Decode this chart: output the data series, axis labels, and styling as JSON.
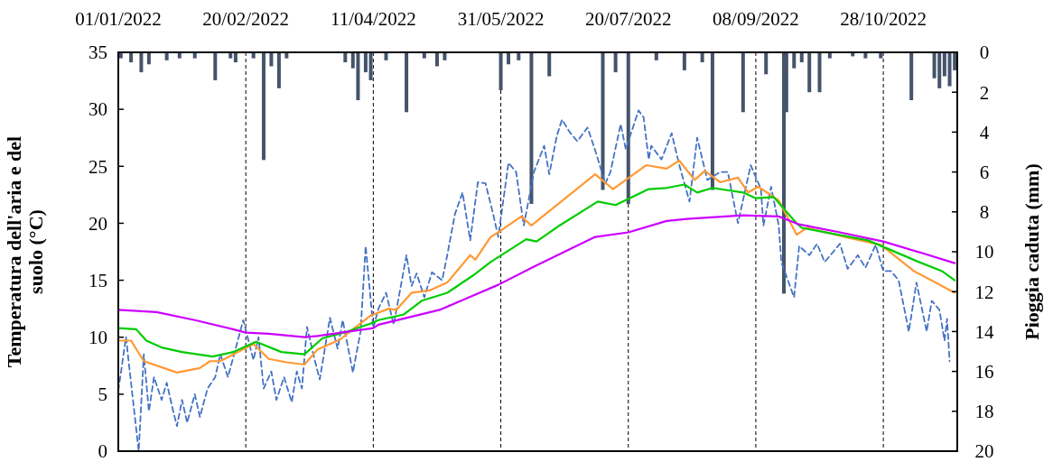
{
  "chart_data": {
    "type": "line",
    "ylabel": "Temperatura dell'aria e del suolo (°C)",
    "y2label": "Pioggia caduta (mm)",
    "xlim": [
      "2022-01-01",
      "2022-11-26"
    ],
    "xticks": [
      {
        "value": "2022-01-01",
        "label": "01/01/2022"
      },
      {
        "value": "2022-02-20",
        "label": "20/02/2022"
      },
      {
        "value": "2022-04-11",
        "label": "11/04/2022"
      },
      {
        "value": "2022-05-31",
        "label": "31/05/2022"
      },
      {
        "value": "2022-07-20",
        "label": "20/07/2022"
      },
      {
        "value": "2022-09-08",
        "label": "08/09/2022"
      },
      {
        "value": "2022-10-28",
        "label": "28/10/2022"
      }
    ],
    "ylim": [
      0,
      35
    ],
    "yticks": [
      0,
      5,
      10,
      15,
      20,
      25,
      30,
      35
    ],
    "y2lim": [
      20,
      0
    ],
    "y2ticks": [
      0,
      2,
      4,
      6,
      8,
      10,
      12,
      14,
      16,
      18,
      20
    ],
    "grid": "x",
    "series": [
      {
        "type": "bar",
        "axis": "y2",
        "color": "#44546a",
        "x": [
          "2022-01-02",
          "2022-01-06",
          "2022-01-10",
          "2022-01-13",
          "2022-01-20",
          "2022-01-25",
          "2022-01-31",
          "2022-02-08",
          "2022-02-14",
          "2022-02-16",
          "2022-02-23",
          "2022-02-27",
          "2022-03-02",
          "2022-03-05",
          "2022-03-08",
          "2022-03-31",
          "2022-04-03",
          "2022-04-05",
          "2022-04-08",
          "2022-04-10",
          "2022-04-16",
          "2022-04-24",
          "2022-05-01",
          "2022-05-06",
          "2022-05-09",
          "2022-05-31",
          "2022-06-03",
          "2022-06-07",
          "2022-06-12",
          "2022-06-19",
          "2022-07-10",
          "2022-07-15",
          "2022-07-20",
          "2022-07-31",
          "2022-08-11",
          "2022-08-18",
          "2022-08-22",
          "2022-09-03",
          "2022-09-12",
          "2022-09-19",
          "2022-09-20",
          "2022-09-23",
          "2022-09-26",
          "2022-09-29",
          "2022-10-03",
          "2022-10-07",
          "2022-10-16",
          "2022-10-21",
          "2022-10-27",
          "2022-11-08",
          "2022-11-17",
          "2022-11-19",
          "2022-11-21",
          "2022-11-23",
          "2022-11-25"
        ],
        "values": [
          0.3,
          0.5,
          1.0,
          0.6,
          0.4,
          0.3,
          0.3,
          1.4,
          0.3,
          0.5,
          0.3,
          5.4,
          0.7,
          1.8,
          0.3,
          0.5,
          0.8,
          2.4,
          1.0,
          1.4,
          0.4,
          3.0,
          0.3,
          0.7,
          0.4,
          1.9,
          0.6,
          0.4,
          7.6,
          1.2,
          6.9,
          1.0,
          7.6,
          0.4,
          0.9,
          0.5,
          6.9,
          3.0,
          1.1,
          12.1,
          3.0,
          0.8,
          0.5,
          2.0,
          2.0,
          0.3,
          0.2,
          0.3,
          0.3,
          2.4,
          1.3,
          1.8,
          1.2,
          1.7,
          0.9
        ]
      },
      {
        "color": "#4472c4",
        "line_style": "dashed",
        "x": [
          "2022-01-01",
          "2022-01-04",
          "2022-01-06",
          "2022-01-09",
          "2022-01-11",
          "2022-01-13",
          "2022-01-15",
          "2022-01-18",
          "2022-01-20",
          "2022-01-22",
          "2022-01-24",
          "2022-01-26",
          "2022-01-28",
          "2022-01-31",
          "2022-02-02",
          "2022-02-05",
          "2022-02-08",
          "2022-02-10",
          "2022-02-13",
          "2022-02-16",
          "2022-02-19",
          "2022-02-23",
          "2022-02-25",
          "2022-02-27",
          "2022-03-02",
          "2022-03-04",
          "2022-03-07",
          "2022-03-10",
          "2022-03-12",
          "2022-03-14",
          "2022-03-16",
          "2022-03-19",
          "2022-03-21",
          "2022-03-25",
          "2022-03-28",
          "2022-03-30",
          "2022-04-03",
          "2022-04-06",
          "2022-04-08",
          "2022-04-11",
          "2022-04-13",
          "2022-04-16",
          "2022-04-19",
          "2022-04-24",
          "2022-04-26",
          "2022-04-28",
          "2022-05-01",
          "2022-05-04",
          "2022-05-08",
          "2022-05-10",
          "2022-05-13",
          "2022-05-16",
          "2022-05-19",
          "2022-05-22",
          "2022-05-25",
          "2022-05-28",
          "2022-05-30",
          "2022-06-03",
          "2022-06-06",
          "2022-06-09",
          "2022-06-13",
          "2022-06-17",
          "2022-06-19",
          "2022-06-22",
          "2022-06-24",
          "2022-06-27",
          "2022-06-30",
          "2022-07-04",
          "2022-07-07",
          "2022-07-11",
          "2022-07-13",
          "2022-07-17",
          "2022-07-19",
          "2022-07-24",
          "2022-07-26",
          "2022-07-28",
          "2022-07-29",
          "2022-08-02",
          "2022-08-06",
          "2022-08-09",
          "2022-08-13",
          "2022-08-16",
          "2022-08-20",
          "2022-08-25",
          "2022-08-28",
          "2022-09-01",
          "2022-09-06",
          "2022-09-10",
          "2022-09-11",
          "2022-09-14",
          "2022-09-17",
          "2022-09-18",
          "2022-09-23",
          "2022-09-25",
          "2022-09-29",
          "2022-10-02",
          "2022-10-05",
          "2022-10-11",
          "2022-10-14",
          "2022-10-18",
          "2022-10-21",
          "2022-10-25",
          "2022-10-28",
          "2022-10-31",
          "2022-11-03",
          "2022-11-07",
          "2022-11-10",
          "2022-11-14",
          "2022-11-16",
          "2022-11-19",
          "2022-11-21",
          "2022-11-22",
          "2022-11-23"
        ],
        "values": [
          5.3,
          10.0,
          6.0,
          0,
          8.5,
          3.5,
          6.5,
          4.5,
          6.0,
          4.0,
          2.2,
          4.5,
          2.5,
          5.0,
          3.0,
          5.5,
          6.5,
          8.5,
          6.5,
          9.0,
          11.5,
          8.0,
          10.0,
          5.5,
          7.0,
          4.5,
          6.5,
          4.3,
          7.0,
          5.5,
          10.9,
          8.0,
          6.3,
          11.7,
          9.0,
          11.5,
          6.9,
          10.5,
          18.0,
          10.8,
          12.5,
          13.9,
          11.1,
          17.2,
          14.5,
          15.6,
          13.5,
          15.7,
          15.0,
          17.2,
          20.8,
          22.7,
          18.5,
          23.6,
          23.5,
          20.8,
          18.8,
          25.3,
          24.5,
          19.8,
          24.5,
          26.8,
          24.3,
          27.7,
          29.1,
          28.0,
          27.2,
          28.4,
          26.4,
          23.5,
          24.5,
          28.7,
          26.5,
          29.9,
          29.3,
          25.6,
          26.8,
          25.6,
          27.9,
          25.1,
          21.9,
          27.5,
          23.8,
          24.5,
          24.5,
          20.0,
          25.1,
          23.0,
          19.8,
          23.2,
          19.8,
          16.6,
          13.5,
          18.0,
          17.2,
          18.2,
          16.6,
          18.2,
          16.0,
          17.2,
          16.1,
          18.1,
          15.8,
          15.8,
          15.0,
          10.5,
          14.8,
          10.5,
          13.2,
          12.4,
          9.7,
          11.6,
          7.9
        ]
      },
      {
        "color": "#ff9933",
        "x": [
          "2022-01-01",
          "2022-01-06",
          "2022-01-11",
          "2022-01-24",
          "2022-02-02",
          "2022-02-06",
          "2022-02-10",
          "2022-02-17",
          "2022-02-23",
          "2022-03-01",
          "2022-03-08",
          "2022-03-15",
          "2022-03-20",
          "2022-03-29",
          "2022-04-03",
          "2022-04-10",
          "2022-04-17",
          "2022-04-20",
          "2022-04-26",
          "2022-05-03",
          "2022-05-10",
          "2022-05-19",
          "2022-05-21",
          "2022-05-27",
          "2022-05-30",
          "2022-06-08",
          "2022-06-12",
          "2022-07-07",
          "2022-07-14",
          "2022-07-27",
          "2022-08-04",
          "2022-08-09",
          "2022-08-15",
          "2022-08-19",
          "2022-08-25",
          "2022-09-01",
          "2022-09-05",
          "2022-09-09",
          "2022-09-17",
          "2022-09-24",
          "2022-09-28",
          "2022-10-13",
          "2022-10-27",
          "2022-11-09",
          "2022-11-25"
        ],
        "values": [
          9.7,
          9.7,
          7.9,
          6.9,
          7.3,
          7.9,
          7.9,
          8.7,
          9.4,
          8.1,
          7.8,
          7.6,
          8.9,
          9.8,
          10.7,
          11.9,
          12.5,
          12.4,
          13.9,
          14.1,
          14.8,
          17.2,
          16.8,
          18.8,
          19.2,
          20.6,
          19.8,
          24.3,
          23.0,
          25.1,
          24.8,
          25.5,
          23.8,
          24.6,
          23.6,
          24.0,
          22.7,
          23.2,
          22.0,
          19.0,
          19.6,
          18.8,
          18.1,
          15.8,
          13.9
        ]
      },
      {
        "color": "#00cc00",
        "x": [
          "2022-01-01",
          "2022-01-08",
          "2022-01-12",
          "2022-01-18",
          "2022-01-26",
          "2022-02-07",
          "2022-02-15",
          "2022-02-24",
          "2022-03-06",
          "2022-03-15",
          "2022-03-22",
          "2022-04-01",
          "2022-04-10",
          "2022-04-13",
          "2022-04-23",
          "2022-04-30",
          "2022-05-10",
          "2022-05-20",
          "2022-05-27",
          "2022-06-10",
          "2022-06-14",
          "2022-06-23",
          "2022-07-08",
          "2022-07-15",
          "2022-07-28",
          "2022-08-04",
          "2022-08-11",
          "2022-08-16",
          "2022-08-22",
          "2022-09-03",
          "2022-09-08",
          "2022-09-15",
          "2022-09-24",
          "2022-09-26",
          "2022-10-22",
          "2022-11-11",
          "2022-11-20",
          "2022-11-25"
        ],
        "values": [
          10.8,
          10.7,
          9.7,
          9.1,
          8.7,
          8.3,
          8.7,
          9.6,
          8.7,
          8.5,
          9.9,
          10.5,
          11.2,
          11.5,
          12.0,
          13.2,
          13.9,
          15.4,
          16.6,
          18.6,
          18.4,
          19.8,
          21.9,
          21.6,
          23.0,
          23.1,
          23.4,
          22.7,
          23.1,
          22.7,
          22.2,
          22.3,
          20.0,
          19.6,
          18.5,
          16.6,
          15.8,
          15.0
        ]
      },
      {
        "color": "#cc00ff",
        "x": [
          "2022-01-01",
          "2022-01-16",
          "2022-01-31",
          "2022-02-15",
          "2022-02-20",
          "2022-03-01",
          "2022-03-15",
          "2022-03-20",
          "2022-04-11",
          "2022-04-13",
          "2022-05-07",
          "2022-05-30",
          "2022-06-13",
          "2022-07-07",
          "2022-07-20",
          "2022-08-04",
          "2022-08-13",
          "2022-09-03",
          "2022-09-17",
          "2022-09-25",
          "2022-10-11",
          "2022-10-28",
          "2022-11-12",
          "2022-11-25"
        ],
        "values": [
          12.4,
          12.2,
          11.5,
          10.7,
          10.4,
          10.3,
          10.0,
          10.1,
          10.8,
          11.1,
          12.4,
          14.6,
          16.2,
          18.8,
          19.2,
          20.2,
          20.4,
          20.7,
          20.6,
          19.9,
          19.2,
          18.4,
          17.4,
          16.5
        ]
      }
    ]
  }
}
